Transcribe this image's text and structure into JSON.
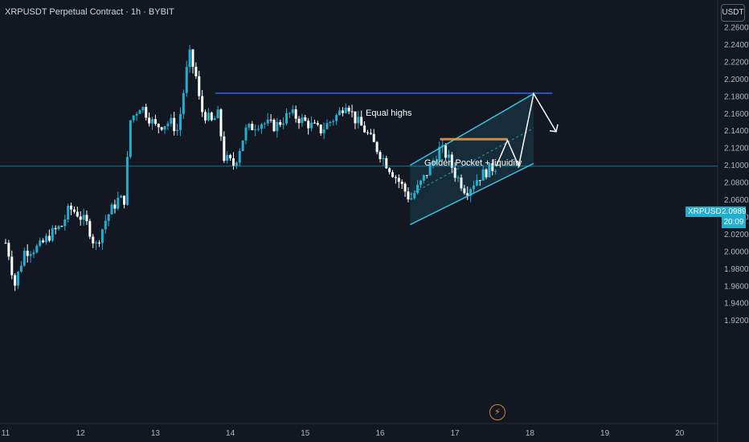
{
  "header": {
    "title": "XRPUSDT Perpetual Contract · 1h · BYBIT",
    "currency_button": "USDT"
  },
  "price_tag": {
    "symbol": "XRPUSDT.P",
    "price": "2.0989",
    "countdown": "20:09"
  },
  "annotations": {
    "equal_highs": "Equal highs",
    "golden_pocket": "Golden Pocket + liquidity",
    "bolt_icon": "lightning-icon"
  },
  "colors": {
    "background": "#131722",
    "bull": "#22aecf",
    "bear": "#ffffff",
    "channel": "#35c3e6",
    "equal_highs_line": "#2962ff",
    "golden_pocket": "#f0a04b",
    "current_price": "#22aecf"
  },
  "chart_data": {
    "type": "candlestick",
    "symbol": "XRPUSDT Perpetual Contract",
    "interval": "1h",
    "exchange": "BYBIT",
    "x_ticks": [
      "11",
      "12",
      "13",
      "14",
      "15",
      "16",
      "17",
      "18",
      "19",
      "20"
    ],
    "y_ticks": [
      "1.9200",
      "1.9400",
      "1.9600",
      "1.9800",
      "2.0000",
      "2.0200",
      "2.0400",
      "2.0600",
      "2.0800",
      "2.1000",
      "2.1200",
      "2.1400",
      "2.1600",
      "2.1800",
      "2.2000",
      "2.2200",
      "2.2400",
      "2.2600"
    ],
    "ylim": [
      1.9175,
      2.2675
    ],
    "day_start": 11,
    "day_end": 20,
    "current_price": 2.0989,
    "equal_highs_level": 2.1835,
    "golden_pocket_zone": [
      2.1297,
      2.1316
    ],
    "approx_path": [
      [
        11.0,
        2.01
      ],
      [
        11.05,
        1.995
      ],
      [
        11.12,
        1.96
      ],
      [
        11.25,
        2.0
      ],
      [
        11.45,
        2.005
      ],
      [
        11.6,
        2.02
      ],
      [
        11.75,
        2.03
      ],
      [
        11.85,
        2.05
      ],
      [
        11.95,
        2.045
      ],
      [
        12.1,
        2.03
      ],
      [
        12.2,
        2.005
      ],
      [
        12.35,
        2.04
      ],
      [
        12.5,
        2.06
      ],
      [
        12.6,
        2.06
      ],
      [
        12.65,
        2.15
      ],
      [
        12.8,
        2.17
      ],
      [
        13.0,
        2.145
      ],
      [
        13.2,
        2.15
      ],
      [
        13.3,
        2.14
      ],
      [
        13.45,
        2.23
      ],
      [
        13.55,
        2.2
      ],
      [
        13.6,
        2.165
      ],
      [
        13.75,
        2.15
      ],
      [
        13.85,
        2.16
      ],
      [
        13.9,
        2.11
      ],
      [
        14.05,
        2.1
      ],
      [
        14.2,
        2.14
      ],
      [
        14.4,
        2.15
      ],
      [
        14.6,
        2.145
      ],
      [
        14.8,
        2.16
      ],
      [
        15.0,
        2.15
      ],
      [
        15.2,
        2.14
      ],
      [
        15.45,
        2.16
      ],
      [
        15.55,
        2.175
      ],
      [
        15.65,
        2.155
      ],
      [
        15.8,
        2.14
      ],
      [
        15.95,
        2.12
      ],
      [
        16.1,
        2.1
      ],
      [
        16.3,
        2.075
      ],
      [
        16.4,
        2.06
      ],
      [
        16.55,
        2.08
      ],
      [
        16.65,
        2.095
      ],
      [
        16.8,
        2.12
      ],
      [
        16.9,
        2.11
      ],
      [
        17.0,
        2.09
      ],
      [
        17.15,
        2.07
      ],
      [
        17.3,
        2.085
      ],
      [
        17.45,
        2.095
      ],
      [
        17.55,
        2.0989
      ]
    ]
  }
}
